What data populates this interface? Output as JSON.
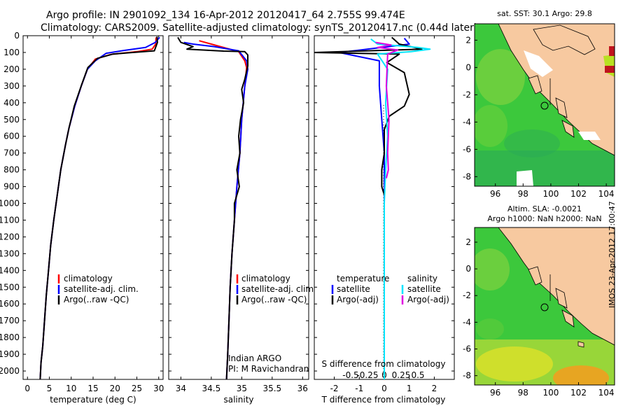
{
  "header": {
    "line1": "Argo profile: IN 2901092_134 16-Apr-2012 20120417_64 2.755S 99.474E",
    "line2": "Climatology: CARS2009. Satellite-adjusted climatology: synTS_20120417.nc (0.44d later)"
  },
  "footer": {
    "credit": "IMOS 23-Apr-2012 17:00:47"
  },
  "colors": {
    "climatology": "#ff0000",
    "satellite": "#0000ff",
    "argo": "#000000",
    "sat_salinity": "#00e5ff",
    "argo_salinity_adj": "#e000e0",
    "land": "#f7c9a0",
    "ocean_green": "#3cc83c"
  },
  "chart_data": [
    {
      "type": "line",
      "id": "temperature",
      "xlabel": "temperature (deg C)",
      "xlim": [
        -1,
        31
      ],
      "xticks": [
        0,
        5,
        10,
        15,
        20,
        25,
        30
      ],
      "ylim": [
        2050,
        0
      ],
      "yticks": [
        0,
        100,
        200,
        300,
        400,
        500,
        600,
        700,
        800,
        900,
        1000,
        1100,
        1200,
        1300,
        1400,
        1500,
        1600,
        1700,
        1800,
        1900,
        2000
      ],
      "legend": [
        "climatology",
        "satellite-adj. clim.",
        "Argo(..raw -QC)"
      ],
      "series": [
        {
          "name": "climatology",
          "color": "#ff0000",
          "points": [
            [
              29.4,
              10
            ],
            [
              29.3,
              50
            ],
            [
              28.5,
              80
            ],
            [
              25,
              95
            ],
            [
              19,
              112
            ],
            [
              15.5,
              140
            ],
            [
              13.7,
              200
            ],
            [
              12.3,
              300
            ],
            [
              10.8,
              420
            ],
            [
              9.5,
              550
            ],
            [
              8.7,
              650
            ],
            [
              7.6,
              800
            ],
            [
              6.8,
              950
            ],
            [
              6.0,
              1100
            ],
            [
              5.3,
              1250
            ],
            [
              4.8,
              1400
            ],
            [
              4.3,
              1550
            ],
            [
              3.9,
              1700
            ],
            [
              3.5,
              1850
            ],
            [
              3.1,
              1950
            ],
            [
              2.9,
              2050
            ]
          ]
        },
        {
          "name": "satellite-adj. clim.",
          "color": "#0000ff",
          "points": [
            [
              30.2,
              10
            ],
            [
              29.2,
              40
            ],
            [
              27,
              70
            ],
            [
              22,
              88
            ],
            [
              18,
              105
            ],
            [
              15.5,
              150
            ],
            [
              13.7,
              200
            ],
            [
              12.3,
              300
            ],
            [
              10.8,
              420
            ],
            [
              9.5,
              550
            ],
            [
              8.7,
              650
            ],
            [
              7.6,
              800
            ],
            [
              6.8,
              950
            ],
            [
              6.0,
              1100
            ],
            [
              5.3,
              1250
            ],
            [
              4.8,
              1400
            ],
            [
              4.3,
              1550
            ],
            [
              3.9,
              1700
            ],
            [
              3.5,
              1850
            ],
            [
              3.1,
              1950
            ],
            [
              2.9,
              2050
            ]
          ]
        },
        {
          "name": "Argo(..raw -QC)",
          "color": "#000000",
          "points": [
            [
              29.6,
              5
            ],
            [
              29.7,
              40
            ],
            [
              29.0,
              90
            ],
            [
              24,
              100
            ],
            [
              19.5,
              110
            ],
            [
              16,
              135
            ],
            [
              13.8,
              190
            ],
            [
              12.4,
              290
            ],
            [
              10.7,
              420
            ],
            [
              9.5,
              550
            ],
            [
              8.7,
              650
            ],
            [
              7.6,
              800
            ],
            [
              6.8,
              950
            ],
            [
              6.0,
              1100
            ],
            [
              5.3,
              1250
            ],
            [
              4.8,
              1400
            ],
            [
              4.3,
              1550
            ],
            [
              3.9,
              1700
            ],
            [
              3.5,
              1850
            ],
            [
              3.1,
              1950
            ],
            [
              2.9,
              2050
            ]
          ]
        }
      ]
    },
    {
      "type": "line",
      "id": "salinity",
      "xlabel": "salinity",
      "xlim": [
        33.8,
        36.1
      ],
      "xticks": [
        34,
        34.5,
        35,
        35.5,
        36
      ],
      "ylim": [
        2050,
        0
      ],
      "legend": [
        "climatology",
        "satellite-adj. clim.",
        "Argo(..raw -QC)"
      ],
      "annotation": [
        "Indian ARGO",
        "PI: M Ravichandran"
      ],
      "series": [
        {
          "name": "climatology",
          "color": "#ff0000",
          "points": [
            [
              34.3,
              30
            ],
            [
              34.5,
              50
            ],
            [
              34.75,
              75
            ],
            [
              34.95,
              95
            ],
            [
              35.05,
              150
            ],
            [
              35.08,
              190
            ],
            [
              35.05,
              300
            ],
            [
              35.0,
              500
            ],
            [
              34.97,
              700
            ],
            [
              34.92,
              900
            ],
            [
              34.88,
              1100
            ],
            [
              34.84,
              1300
            ],
            [
              34.81,
              1500
            ],
            [
              34.79,
              1700
            ],
            [
              34.77,
              1900
            ],
            [
              34.75,
              2050
            ]
          ]
        },
        {
          "name": "satellite-adj. clim.",
          "color": "#0000ff",
          "points": [
            [
              34.05,
              40
            ],
            [
              34.2,
              50
            ],
            [
              34.55,
              65
            ],
            [
              34.95,
              90
            ],
            [
              35.08,
              150
            ],
            [
              35.1,
              200
            ],
            [
              35.05,
              300
            ],
            [
              35.0,
              500
            ],
            [
              34.97,
              700
            ],
            [
              34.92,
              900
            ],
            [
              34.88,
              1100
            ],
            [
              34.84,
              1300
            ],
            [
              34.81,
              1500
            ],
            [
              34.79,
              1700
            ],
            [
              34.77,
              1900
            ],
            [
              34.75,
              2050
            ]
          ]
        },
        {
          "name": "Argo(..raw -QC)",
          "color": "#000000",
          "points": [
            [
              33.95,
              10
            ],
            [
              34.0,
              40
            ],
            [
              34.2,
              65
            ],
            [
              34.1,
              80
            ],
            [
              34.7,
              92
            ],
            [
              35.05,
              95
            ],
            [
              35.1,
              115
            ],
            [
              35.1,
              180
            ],
            [
              35.05,
              260
            ],
            [
              35.0,
              320
            ],
            [
              35.03,
              400
            ],
            [
              34.98,
              500
            ],
            [
              34.95,
              600
            ],
            [
              34.97,
              700
            ],
            [
              34.92,
              800
            ],
            [
              34.96,
              900
            ],
            [
              34.88,
              1000
            ],
            [
              34.88,
              1100
            ],
            [
              34.84,
              1300
            ],
            [
              34.81,
              1500
            ],
            [
              34.79,
              1700
            ],
            [
              34.77,
              1900
            ],
            [
              34.75,
              2050
            ]
          ]
        }
      ]
    },
    {
      "type": "line",
      "id": "difference",
      "xlabel": "T difference from climatology",
      "xlabel_top": "S difference from climatology",
      "xlim": [
        -2.8,
        2.8
      ],
      "xticks": [
        -2,
        -1,
        0,
        1,
        2
      ],
      "s_ticks": [
        -0.5,
        -0.25,
        0,
        0.25,
        0.5
      ],
      "s_tick_labels": [
        "-0.5",
        "-0.25",
        "0",
        "0.25",
        "0.5"
      ],
      "ylim": [
        2050,
        0
      ],
      "legend_temperature_title": "temperature",
      "legend_salinity_title": "salinity",
      "legend": [
        "satellite",
        "Argo(-adj)",
        "satellite",
        "Argo(-adj)"
      ],
      "series": [
        {
          "name": "satellite",
          "group": "temperature",
          "color": "#0000ff",
          "points": [
            [
              0.8,
              15
            ],
            [
              1.0,
              50
            ],
            [
              -1.8,
              100
            ],
            [
              -0.2,
              150
            ],
            [
              -0.2,
              300
            ],
            [
              -0.1,
              500
            ],
            [
              0,
              700
            ],
            [
              0,
              2050
            ]
          ]
        },
        {
          "name": "Argo(-adj)",
          "group": "temperature",
          "color": "#000000",
          "points": [
            [
              0.3,
              10
            ],
            [
              0.6,
              50
            ],
            [
              1.5,
              80
            ],
            [
              -2.8,
              100
            ],
            [
              0.6,
              110
            ],
            [
              0.1,
              160
            ],
            [
              0.8,
              220
            ],
            [
              1.0,
              350
            ],
            [
              0.8,
              420
            ],
            [
              0.2,
              480
            ],
            [
              0.0,
              560
            ],
            [
              0.0,
              700
            ],
            [
              -0.1,
              800
            ],
            [
              -0.1,
              900
            ],
            [
              0,
              950
            ]
          ]
        },
        {
          "name": "satellite",
          "group": "salinity",
          "color": "#00e5ff",
          "points": [
            [
              -0.2,
              20
            ],
            [
              -0.1,
              50
            ],
            [
              0.5,
              70
            ],
            [
              0.68,
              80
            ],
            [
              0.4,
              95
            ],
            [
              -0.1,
              110
            ],
            [
              0.05,
              200
            ],
            [
              0.02,
              400
            ],
            [
              0.05,
              600
            ],
            [
              0.02,
              800
            ],
            [
              0.0,
              1000
            ],
            [
              0,
              2050
            ]
          ]
        },
        {
          "name": "Argo(-adj)",
          "group": "salinity",
          "color": "#e000e0",
          "points": [
            [
              -0.13,
              40
            ],
            [
              0.1,
              55
            ],
            [
              -0.1,
              70
            ],
            [
              0.2,
              85
            ],
            [
              0.05,
              110
            ],
            [
              0.03,
              300
            ],
            [
              0.07,
              500
            ],
            [
              0.05,
              700
            ],
            [
              0.06,
              800
            ],
            [
              0.03,
              850
            ]
          ]
        }
      ]
    }
  ],
  "maps": [
    {
      "id": "sst",
      "title": "sat. SST: 30.1  Argo: 29.8",
      "xticks": [
        96,
        98,
        100,
        102,
        104
      ],
      "yticks": [
        2,
        0,
        -2,
        -4,
        -6,
        -8
      ]
    },
    {
      "id": "sla",
      "title_line1": "Altim. SLA: -0.0021",
      "title_line2": "Argo h1000: NaN h2000: NaN",
      "xticks": [
        96,
        98,
        100,
        102,
        104
      ],
      "yticks": [
        2,
        0,
        -2,
        -4,
        -6,
        -8
      ]
    }
  ]
}
